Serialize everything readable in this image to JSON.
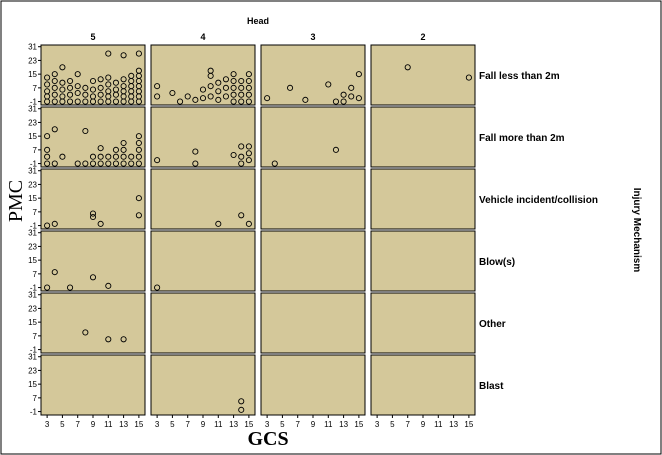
{
  "chart_data": {
    "type": "scatter",
    "top_label": "Head",
    "right_label": "Injury Mechanism",
    "xlabel": "GCS",
    "ylabel": "PMC",
    "columns": [
      "5",
      "4",
      "3",
      "2"
    ],
    "rows": [
      "Fall less than 2m",
      "Fall more than 2m",
      "Vehicle incident/collision",
      "Blow(s)",
      "Other",
      "Blast"
    ],
    "xticks": [
      3,
      5,
      7,
      9,
      11,
      13,
      15
    ],
    "yticks": [
      31,
      23,
      15,
      7,
      -1
    ],
    "xlim": [
      2.2,
      15.8
    ],
    "ylim": [
      -3,
      32
    ],
    "colors": {
      "panel": "#d4c89a",
      "marker": "#000000"
    },
    "points": [
      {
        "row": 0,
        "col": 0,
        "x": 3,
        "y": -1
      },
      {
        "row": 0,
        "col": 0,
        "x": 3,
        "y": 2
      },
      {
        "row": 0,
        "col": 0,
        "x": 3,
        "y": 5
      },
      {
        "row": 0,
        "col": 0,
        "x": 3,
        "y": 9
      },
      {
        "row": 0,
        "col": 0,
        "x": 3,
        "y": 13
      },
      {
        "row": 0,
        "col": 0,
        "x": 4,
        "y": -1
      },
      {
        "row": 0,
        "col": 0,
        "x": 4,
        "y": 3
      },
      {
        "row": 0,
        "col": 0,
        "x": 4,
        "y": 7
      },
      {
        "row": 0,
        "col": 0,
        "x": 4,
        "y": 11
      },
      {
        "row": 0,
        "col": 0,
        "x": 4,
        "y": 15
      },
      {
        "row": 0,
        "col": 0,
        "x": 5,
        "y": -1
      },
      {
        "row": 0,
        "col": 0,
        "x": 5,
        "y": 2
      },
      {
        "row": 0,
        "col": 0,
        "x": 5,
        "y": 6
      },
      {
        "row": 0,
        "col": 0,
        "x": 5,
        "y": 10
      },
      {
        "row": 0,
        "col": 0,
        "x": 5,
        "y": 19
      },
      {
        "row": 0,
        "col": 0,
        "x": 6,
        "y": -1
      },
      {
        "row": 0,
        "col": 0,
        "x": 6,
        "y": 3
      },
      {
        "row": 0,
        "col": 0,
        "x": 6,
        "y": 7
      },
      {
        "row": 0,
        "col": 0,
        "x": 6,
        "y": 11
      },
      {
        "row": 0,
        "col": 0,
        "x": 7,
        "y": -1
      },
      {
        "row": 0,
        "col": 0,
        "x": 7,
        "y": 4
      },
      {
        "row": 0,
        "col": 0,
        "x": 7,
        "y": 8
      },
      {
        "row": 0,
        "col": 0,
        "x": 7,
        "y": 15
      },
      {
        "row": 0,
        "col": 0,
        "x": 8,
        "y": -1
      },
      {
        "row": 0,
        "col": 0,
        "x": 8,
        "y": 3
      },
      {
        "row": 0,
        "col": 0,
        "x": 8,
        "y": 7
      },
      {
        "row": 0,
        "col": 0,
        "x": 9,
        "y": -1
      },
      {
        "row": 0,
        "col": 0,
        "x": 9,
        "y": 2
      },
      {
        "row": 0,
        "col": 0,
        "x": 9,
        "y": 6
      },
      {
        "row": 0,
        "col": 0,
        "x": 9,
        "y": 11
      },
      {
        "row": 0,
        "col": 0,
        "x": 10,
        "y": -1
      },
      {
        "row": 0,
        "col": 0,
        "x": 10,
        "y": 3
      },
      {
        "row": 0,
        "col": 0,
        "x": 10,
        "y": 7
      },
      {
        "row": 0,
        "col": 0,
        "x": 10,
        "y": 12
      },
      {
        "row": 0,
        "col": 0,
        "x": 11,
        "y": -1
      },
      {
        "row": 0,
        "col": 0,
        "x": 11,
        "y": 2
      },
      {
        "row": 0,
        "col": 0,
        "x": 11,
        "y": 5
      },
      {
        "row": 0,
        "col": 0,
        "x": 11,
        "y": 9
      },
      {
        "row": 0,
        "col": 0,
        "x": 11,
        "y": 13
      },
      {
        "row": 0,
        "col": 0,
        "x": 11,
        "y": 27
      },
      {
        "row": 0,
        "col": 0,
        "x": 12,
        "y": -1
      },
      {
        "row": 0,
        "col": 0,
        "x": 12,
        "y": 3
      },
      {
        "row": 0,
        "col": 0,
        "x": 12,
        "y": 6
      },
      {
        "row": 0,
        "col": 0,
        "x": 12,
        "y": 10
      },
      {
        "row": 0,
        "col": 0,
        "x": 13,
        "y": -1
      },
      {
        "row": 0,
        "col": 0,
        "x": 13,
        "y": 2
      },
      {
        "row": 0,
        "col": 0,
        "x": 13,
        "y": 5
      },
      {
        "row": 0,
        "col": 0,
        "x": 13,
        "y": 8
      },
      {
        "row": 0,
        "col": 0,
        "x": 13,
        "y": 12
      },
      {
        "row": 0,
        "col": 0,
        "x": 13,
        "y": 26
      },
      {
        "row": 0,
        "col": 0,
        "x": 14,
        "y": -1
      },
      {
        "row": 0,
        "col": 0,
        "x": 14,
        "y": 2
      },
      {
        "row": 0,
        "col": 0,
        "x": 14,
        "y": 5
      },
      {
        "row": 0,
        "col": 0,
        "x": 14,
        "y": 8
      },
      {
        "row": 0,
        "col": 0,
        "x": 14,
        "y": 11
      },
      {
        "row": 0,
        "col": 0,
        "x": 14,
        "y": 14
      },
      {
        "row": 0,
        "col": 0,
        "x": 15,
        "y": -1
      },
      {
        "row": 0,
        "col": 0,
        "x": 15,
        "y": 2
      },
      {
        "row": 0,
        "col": 0,
        "x": 15,
        "y": 5
      },
      {
        "row": 0,
        "col": 0,
        "x": 15,
        "y": 8
      },
      {
        "row": 0,
        "col": 0,
        "x": 15,
        "y": 11
      },
      {
        "row": 0,
        "col": 0,
        "x": 15,
        "y": 14
      },
      {
        "row": 0,
        "col": 0,
        "x": 15,
        "y": 17
      },
      {
        "row": 0,
        "col": 0,
        "x": 15,
        "y": 27
      },
      {
        "row": 0,
        "col": 1,
        "x": 3,
        "y": 2
      },
      {
        "row": 0,
        "col": 1,
        "x": 3,
        "y": 8
      },
      {
        "row": 0,
        "col": 1,
        "x": 5,
        "y": 4
      },
      {
        "row": 0,
        "col": 1,
        "x": 6,
        "y": -1
      },
      {
        "row": 0,
        "col": 1,
        "x": 7,
        "y": 2
      },
      {
        "row": 0,
        "col": 1,
        "x": 8,
        "y": 0
      },
      {
        "row": 0,
        "col": 1,
        "x": 9,
        "y": 1
      },
      {
        "row": 0,
        "col": 1,
        "x": 9,
        "y": 6
      },
      {
        "row": 0,
        "col": 1,
        "x": 10,
        "y": 2
      },
      {
        "row": 0,
        "col": 1,
        "x": 10,
        "y": 8
      },
      {
        "row": 0,
        "col": 1,
        "x": 10,
        "y": 14
      },
      {
        "row": 0,
        "col": 1,
        "x": 10,
        "y": 17
      },
      {
        "row": 0,
        "col": 1,
        "x": 11,
        "y": 0
      },
      {
        "row": 0,
        "col": 1,
        "x": 11,
        "y": 5
      },
      {
        "row": 0,
        "col": 1,
        "x": 11,
        "y": 10
      },
      {
        "row": 0,
        "col": 1,
        "x": 12,
        "y": 2
      },
      {
        "row": 0,
        "col": 1,
        "x": 12,
        "y": 7
      },
      {
        "row": 0,
        "col": 1,
        "x": 12,
        "y": 12
      },
      {
        "row": 0,
        "col": 1,
        "x": 13,
        "y": -1
      },
      {
        "row": 0,
        "col": 1,
        "x": 13,
        "y": 3
      },
      {
        "row": 0,
        "col": 1,
        "x": 13,
        "y": 7
      },
      {
        "row": 0,
        "col": 1,
        "x": 13,
        "y": 11
      },
      {
        "row": 0,
        "col": 1,
        "x": 13,
        "y": 15
      },
      {
        "row": 0,
        "col": 1,
        "x": 14,
        "y": -1
      },
      {
        "row": 0,
        "col": 1,
        "x": 14,
        "y": 3
      },
      {
        "row": 0,
        "col": 1,
        "x": 14,
        "y": 7
      },
      {
        "row": 0,
        "col": 1,
        "x": 14,
        "y": 11
      },
      {
        "row": 0,
        "col": 1,
        "x": 15,
        "y": -1
      },
      {
        "row": 0,
        "col": 1,
        "x": 15,
        "y": 3
      },
      {
        "row": 0,
        "col": 1,
        "x": 15,
        "y": 7
      },
      {
        "row": 0,
        "col": 1,
        "x": 15,
        "y": 11
      },
      {
        "row": 0,
        "col": 1,
        "x": 15,
        "y": 15
      },
      {
        "row": 0,
        "col": 2,
        "x": 3,
        "y": 1
      },
      {
        "row": 0,
        "col": 2,
        "x": 6,
        "y": 7
      },
      {
        "row": 0,
        "col": 2,
        "x": 8,
        "y": 0
      },
      {
        "row": 0,
        "col": 2,
        "x": 11,
        "y": 9
      },
      {
        "row": 0,
        "col": 2,
        "x": 12,
        "y": -1
      },
      {
        "row": 0,
        "col": 2,
        "x": 13,
        "y": -1
      },
      {
        "row": 0,
        "col": 2,
        "x": 13,
        "y": 3
      },
      {
        "row": 0,
        "col": 2,
        "x": 14,
        "y": 2
      },
      {
        "row": 0,
        "col": 2,
        "x": 14,
        "y": 7
      },
      {
        "row": 0,
        "col": 2,
        "x": 15,
        "y": 1
      },
      {
        "row": 0,
        "col": 2,
        "x": 15,
        "y": 15
      },
      {
        "row": 0,
        "col": 3,
        "x": 7,
        "y": 19
      },
      {
        "row": 0,
        "col": 3,
        "x": 15,
        "y": 13
      },
      {
        "row": 1,
        "col": 0,
        "x": 3,
        "y": -1
      },
      {
        "row": 1,
        "col": 0,
        "x": 3,
        "y": 3
      },
      {
        "row": 1,
        "col": 0,
        "x": 3,
        "y": 7
      },
      {
        "row": 1,
        "col": 0,
        "x": 3,
        "y": 15
      },
      {
        "row": 1,
        "col": 0,
        "x": 4,
        "y": -1
      },
      {
        "row": 1,
        "col": 0,
        "x": 4,
        "y": 19
      },
      {
        "row": 1,
        "col": 0,
        "x": 5,
        "y": 3
      },
      {
        "row": 1,
        "col": 0,
        "x": 7,
        "y": -1
      },
      {
        "row": 1,
        "col": 0,
        "x": 8,
        "y": -1
      },
      {
        "row": 1,
        "col": 0,
        "x": 8,
        "y": 18
      },
      {
        "row": 1,
        "col": 0,
        "x": 9,
        "y": -1
      },
      {
        "row": 1,
        "col": 0,
        "x": 9,
        "y": 3
      },
      {
        "row": 1,
        "col": 0,
        "x": 10,
        "y": -1
      },
      {
        "row": 1,
        "col": 0,
        "x": 10,
        "y": 3
      },
      {
        "row": 1,
        "col": 0,
        "x": 10,
        "y": 8
      },
      {
        "row": 1,
        "col": 0,
        "x": 11,
        "y": -1
      },
      {
        "row": 1,
        "col": 0,
        "x": 11,
        "y": 3
      },
      {
        "row": 1,
        "col": 0,
        "x": 12,
        "y": -1
      },
      {
        "row": 1,
        "col": 0,
        "x": 12,
        "y": 3
      },
      {
        "row": 1,
        "col": 0,
        "x": 12,
        "y": 7
      },
      {
        "row": 1,
        "col": 0,
        "x": 13,
        "y": -1
      },
      {
        "row": 1,
        "col": 0,
        "x": 13,
        "y": 3
      },
      {
        "row": 1,
        "col": 0,
        "x": 13,
        "y": 7
      },
      {
        "row": 1,
        "col": 0,
        "x": 13,
        "y": 11
      },
      {
        "row": 1,
        "col": 0,
        "x": 14,
        "y": -1
      },
      {
        "row": 1,
        "col": 0,
        "x": 14,
        "y": 3
      },
      {
        "row": 1,
        "col": 0,
        "x": 15,
        "y": -1
      },
      {
        "row": 1,
        "col": 0,
        "x": 15,
        "y": 3
      },
      {
        "row": 1,
        "col": 0,
        "x": 15,
        "y": 7
      },
      {
        "row": 1,
        "col": 0,
        "x": 15,
        "y": 11
      },
      {
        "row": 1,
        "col": 0,
        "x": 15,
        "y": 15
      },
      {
        "row": 1,
        "col": 1,
        "x": 3,
        "y": 1
      },
      {
        "row": 1,
        "col": 1,
        "x": 8,
        "y": -1
      },
      {
        "row": 1,
        "col": 1,
        "x": 8,
        "y": 6
      },
      {
        "row": 1,
        "col": 1,
        "x": 13,
        "y": 4
      },
      {
        "row": 1,
        "col": 1,
        "x": 14,
        "y": -1
      },
      {
        "row": 1,
        "col": 1,
        "x": 14,
        "y": 3
      },
      {
        "row": 1,
        "col": 1,
        "x": 14,
        "y": 9
      },
      {
        "row": 1,
        "col": 1,
        "x": 15,
        "y": 1
      },
      {
        "row": 1,
        "col": 1,
        "x": 15,
        "y": 5
      },
      {
        "row": 1,
        "col": 1,
        "x": 15,
        "y": 9
      },
      {
        "row": 1,
        "col": 2,
        "x": 4,
        "y": -1
      },
      {
        "row": 1,
        "col": 2,
        "x": 12,
        "y": 7
      },
      {
        "row": 2,
        "col": 0,
        "x": 3,
        "y": -1
      },
      {
        "row": 2,
        "col": 0,
        "x": 4,
        "y": 0
      },
      {
        "row": 2,
        "col": 0,
        "x": 9,
        "y": 4
      },
      {
        "row": 2,
        "col": 0,
        "x": 9,
        "y": 6
      },
      {
        "row": 2,
        "col": 0,
        "x": 10,
        "y": 0
      },
      {
        "row": 2,
        "col": 0,
        "x": 15,
        "y": 5
      },
      {
        "row": 2,
        "col": 0,
        "x": 15,
        "y": 15
      },
      {
        "row": 2,
        "col": 1,
        "x": 11,
        "y": 0
      },
      {
        "row": 2,
        "col": 1,
        "x": 14,
        "y": 5
      },
      {
        "row": 2,
        "col": 1,
        "x": 15,
        "y": 0
      },
      {
        "row": 3,
        "col": 0,
        "x": 3,
        "y": -1
      },
      {
        "row": 3,
        "col": 0,
        "x": 4,
        "y": 8
      },
      {
        "row": 3,
        "col": 0,
        "x": 6,
        "y": -1
      },
      {
        "row": 3,
        "col": 0,
        "x": 9,
        "y": 5
      },
      {
        "row": 3,
        "col": 0,
        "x": 11,
        "y": 0
      },
      {
        "row": 3,
        "col": 1,
        "x": 3,
        "y": -1
      },
      {
        "row": 4,
        "col": 0,
        "x": 8,
        "y": 9
      },
      {
        "row": 4,
        "col": 0,
        "x": 11,
        "y": 5
      },
      {
        "row": 4,
        "col": 0,
        "x": 13,
        "y": 5
      },
      {
        "row": 5,
        "col": 1,
        "x": 14,
        "y": 5
      },
      {
        "row": 5,
        "col": 1,
        "x": 14,
        "y": 0
      }
    ]
  }
}
